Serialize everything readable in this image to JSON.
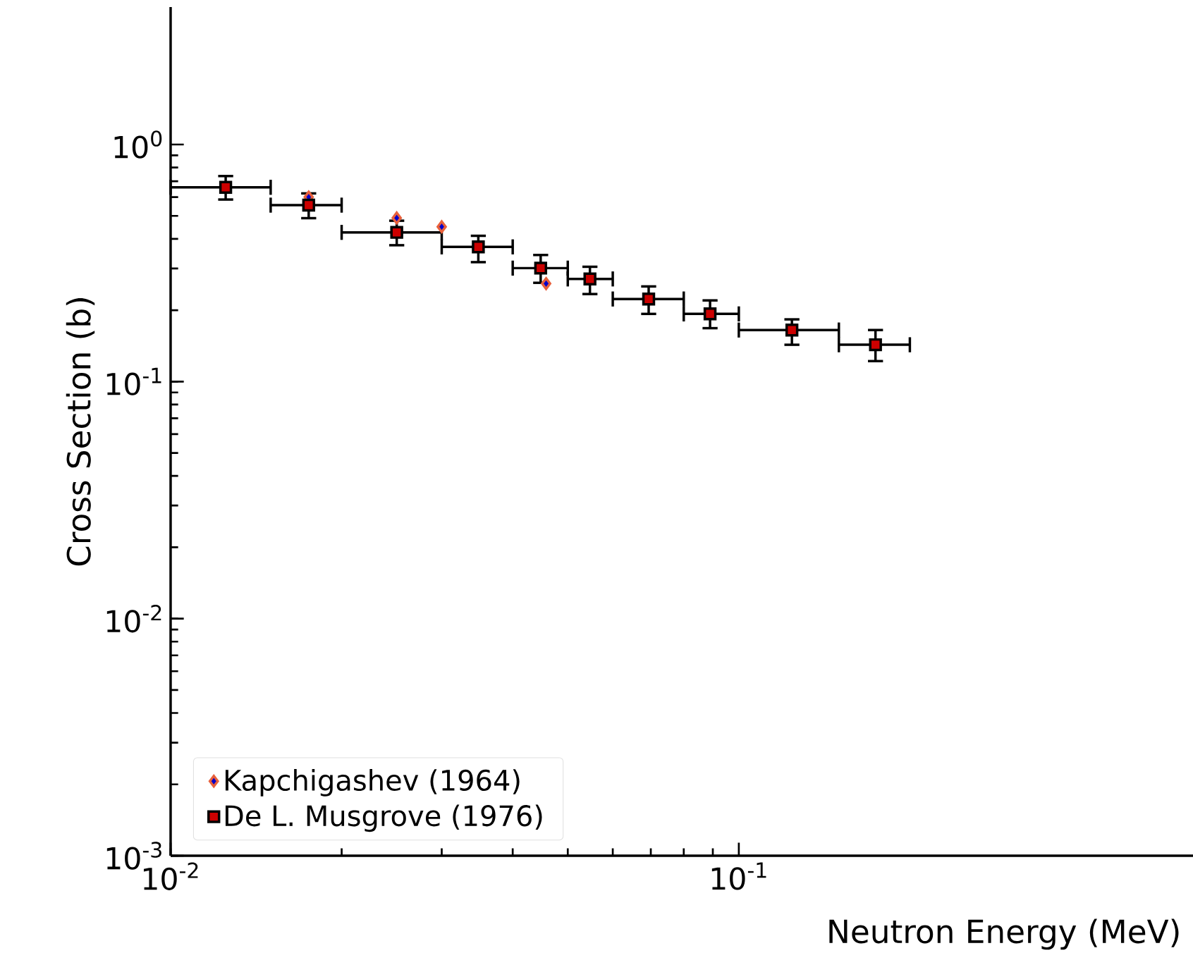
{
  "chart_data": {
    "type": "scatter",
    "xlabel": "Neutron Energy (MeV)",
    "ylabel": "Cross Section (b)",
    "log": "xy",
    "legend": "bottom left",
    "marker": "square",
    "xlim": [
      0.01,
      0.63
    ],
    "ylim": [
      0.001,
      3.8
    ],
    "xticks": [
      {
        "value": 0.01,
        "label": "10$^{-2}$"
      },
      {
        "value": 0.1,
        "label": "10$^{-1}$"
      }
    ],
    "yticks": [
      {
        "value": 0.001,
        "label": "10$^{-3}$"
      },
      {
        "value": 0.01,
        "label": "10$^{-2}$"
      },
      {
        "value": 0.1,
        "label": "10$^{-1}$"
      },
      {
        "value": 1,
        "label": "10$^{0}$"
      }
    ],
    "series": [
      {
        "name": "Kapchigashev (1964)",
        "color": "#e8603c",
        "marker": "diamond",
        "x": [
          0.0175,
          0.025,
          0.03,
          0.0458
        ],
        "values": [
          0.6,
          0.49,
          0.45,
          0.259
        ]
      },
      {
        "name": "De L. Musgrove (1976)",
        "color": "#000000",
        "x": [
          0.0125,
          0.0175,
          0.025,
          0.0348,
          0.0448,
          0.0547,
          0.0694,
          0.089,
          0.124,
          0.174
        ],
        "values": [
          0.66,
          0.555,
          0.426,
          0.37,
          0.301,
          0.271,
          0.223,
          0.193,
          0.165,
          0.143
        ],
        "errors": [
          [
            0.586,
            0.736
          ],
          [
            0.489,
            0.622
          ],
          [
            0.376,
            0.477
          ],
          [
            0.319,
            0.412
          ],
          [
            0.261,
            0.342
          ],
          [
            0.234,
            0.305
          ],
          [
            0.193,
            0.252
          ],
          [
            0.168,
            0.22
          ],
          [
            0.143,
            0.183
          ],
          [
            0.122,
            0.165
          ]
        ],
        "xerrors": [
          [
            0.01,
            0.015
          ],
          [
            0.015,
            0.02
          ],
          [
            0.02,
            0.03
          ],
          [
            0.03,
            0.04
          ],
          [
            0.04,
            0.05
          ],
          [
            0.05,
            0.06
          ],
          [
            0.06,
            0.08
          ],
          [
            0.08,
            0.1
          ],
          [
            0.1,
            0.15
          ],
          [
            0.15,
            0.2
          ]
        ]
      }
    ]
  }
}
